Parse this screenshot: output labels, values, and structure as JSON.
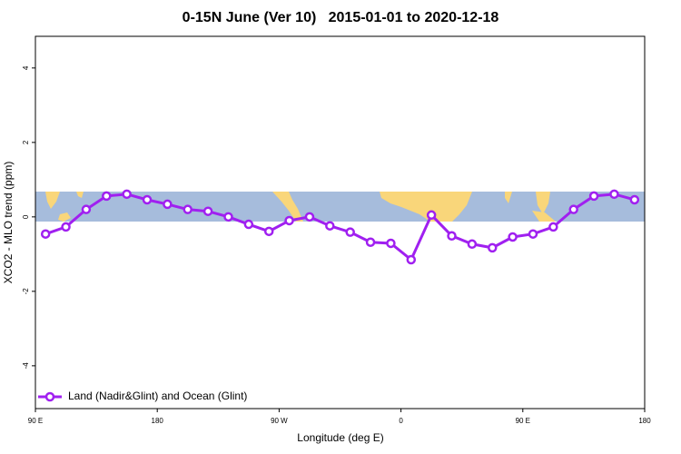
{
  "chart_data": {
    "type": "line",
    "title": "0-15N June (Ver 10)   2015-01-01 to 2020-12-18",
    "x_label": "Longitude (deg E)",
    "y_label": "XCO2 - MLO trend (ppm)",
    "x": [
      97.5,
      112.5,
      127.5,
      142.5,
      157.5,
      172.5,
      187.5,
      202.5,
      217.5,
      232.5,
      247.5,
      262.5,
      277.5,
      292.5,
      307.5,
      322.5,
      337.5,
      352.5,
      367.5,
      382.5,
      397.5,
      412.5,
      427.5,
      442.5,
      457.5,
      472.5,
      487.5,
      502.5,
      517.5,
      532.5
    ],
    "series": [
      {
        "name": "Land (Nadir&Glint) and Ocean (Glint)",
        "color": "#a020f0",
        "values": [
          -0.46,
          -0.27,
          0.2,
          0.56,
          0.61,
          0.46,
          0.34,
          0.2,
          0.15,
          0,
          -0.2,
          -0.39,
          -0.1,
          0,
          -0.24,
          -0.41,
          -0.68,
          -0.71,
          -1.15,
          0.05,
          -0.51,
          -0.73,
          -0.83,
          -0.54,
          -0.46,
          -0.27,
          0.2,
          0.56,
          0.61,
          0.46
        ]
      }
    ],
    "xlim": [
      90,
      540
    ],
    "xticks": [
      {
        "value": 90,
        "label": "90 E"
      },
      {
        "value": 180,
        "label": "180"
      },
      {
        "value": 270,
        "label": "90 W"
      },
      {
        "value": 360,
        "label": "0"
      },
      {
        "value": 450,
        "label": "90 E"
      },
      {
        "value": 540,
        "label": "180"
      }
    ],
    "ylim": [
      -5.15,
      4.85
    ],
    "yticks": [
      -4,
      -2,
      0,
      2,
      4
    ],
    "legend": "bottom-left"
  }
}
